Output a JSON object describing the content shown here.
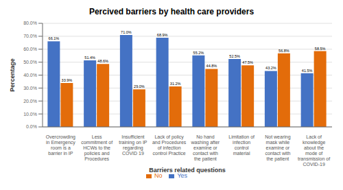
{
  "chart_data": {
    "type": "bar",
    "title": "Percived barriers by health care providers",
    "xlabel": "Barriers related questions",
    "ylabel": "Percentage",
    "categories": [
      "Overcrowding\nin Emergency\nroom is a\nbarrier in IP",
      "Less\ncommitment of\nHCWs to the\npolicies and\nProcedures",
      "Insufficient\ntraining on IP\nregarding\nCOVID 19",
      "Lack of policy\nand Procedures\nof infection\ncontrol Practice",
      "No hand\nwashing after\nexamine or\ncontact with\nthe patient",
      "Limitation of\ninfection\ncontrol\nmaterial",
      "Not wearing\nmask while\nexamine or\ncontact with\nthe patient",
      "Lack of\nknowledge\nabout the\nmode of\ntransmission of\nCOVID-19"
    ],
    "series": [
      {
        "name": "Yes",
        "color": "#4472C4",
        "values": [
          66.1,
          51.4,
          71.0,
          68.9,
          55.2,
          52.5,
          43.2,
          41.5
        ],
        "value_labels": [
          "66.1%",
          "51.4%",
          "71.0%",
          "68.9%",
          "55.2%",
          "52.5%",
          "43.2%",
          "41.5%"
        ]
      },
      {
        "name": "No",
        "color": "#E36C0A",
        "values": [
          33.9,
          48.6,
          29.0,
          31.2,
          44.8,
          47.5,
          56.8,
          58.5
        ],
        "value_labels": [
          "33.9%",
          "48.6%",
          "29.0%",
          "31.2%",
          "44.8%",
          "47.5%",
          "56.8%",
          "58.5%"
        ]
      }
    ],
    "ylim": [
      0,
      80
    ],
    "yticks": [
      {
        "value": 0,
        "label": "0.0%"
      },
      {
        "value": 10,
        "label": "10.0%"
      },
      {
        "value": 20,
        "label": "20.0%"
      },
      {
        "value": 30,
        "label": "30.0%"
      },
      {
        "value": 40,
        "label": "40.0%"
      },
      {
        "value": 50,
        "label": "50.0%"
      },
      {
        "value": 60,
        "label": "60.0%"
      },
      {
        "value": 70,
        "label": "70.0%"
      },
      {
        "value": 80,
        "label": "80.0%"
      }
    ],
    "grid": true,
    "legend": "bottom",
    "data_labels": true
  }
}
